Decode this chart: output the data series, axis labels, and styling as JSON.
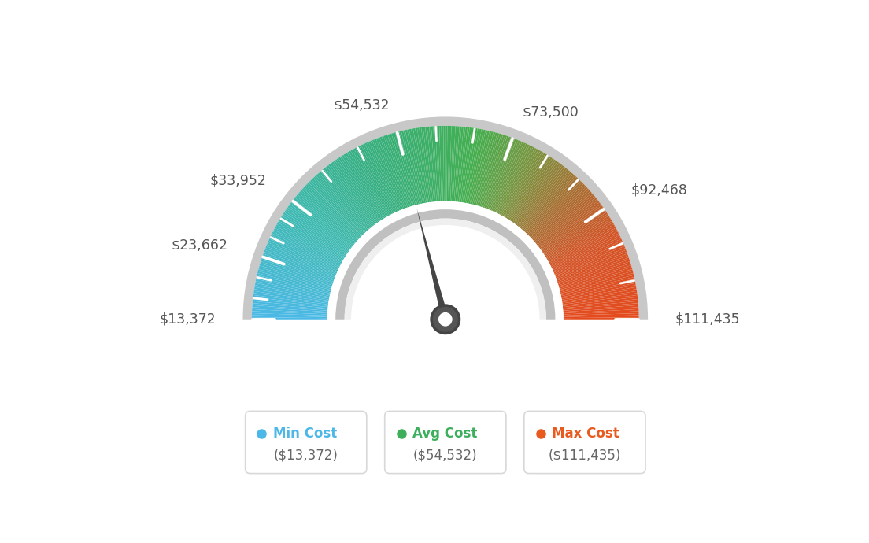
{
  "min_value": 13372,
  "max_value": 111435,
  "avg_value": 54532,
  "labels": [
    "$13,372",
    "$23,662",
    "$33,952",
    "$54,532",
    "$73,500",
    "$92,468",
    "$111,435"
  ],
  "label_values": [
    13372,
    23662,
    33952,
    54532,
    73500,
    92468,
    111435
  ],
  "legend": [
    {
      "label": "Min Cost",
      "sublabel": "($13,372)",
      "color": "#4db8e8"
    },
    {
      "label": "Avg Cost",
      "sublabel": "($54,532)",
      "color": "#3daf5c"
    },
    {
      "label": "Max Cost",
      "sublabel": "($111,435)",
      "color": "#e85a1e"
    }
  ],
  "color_stops": [
    [
      0.0,
      [
        75,
        185,
        230
      ]
    ],
    [
      0.2,
      [
        62,
        185,
        175
      ]
    ],
    [
      0.35,
      [
        55,
        175,
        130
      ]
    ],
    [
      0.48,
      [
        62,
        175,
        100
      ]
    ],
    [
      0.55,
      [
        68,
        175,
        80
      ]
    ],
    [
      0.65,
      [
        120,
        150,
        65
      ]
    ],
    [
      0.75,
      [
        168,
        110,
        50
      ]
    ],
    [
      0.85,
      [
        210,
        85,
        40
      ]
    ],
    [
      1.0,
      [
        228,
        75,
        30
      ]
    ]
  ],
  "needle_color": "#4a4a4a",
  "background_color": "#ffffff",
  "text_color": "#555555"
}
